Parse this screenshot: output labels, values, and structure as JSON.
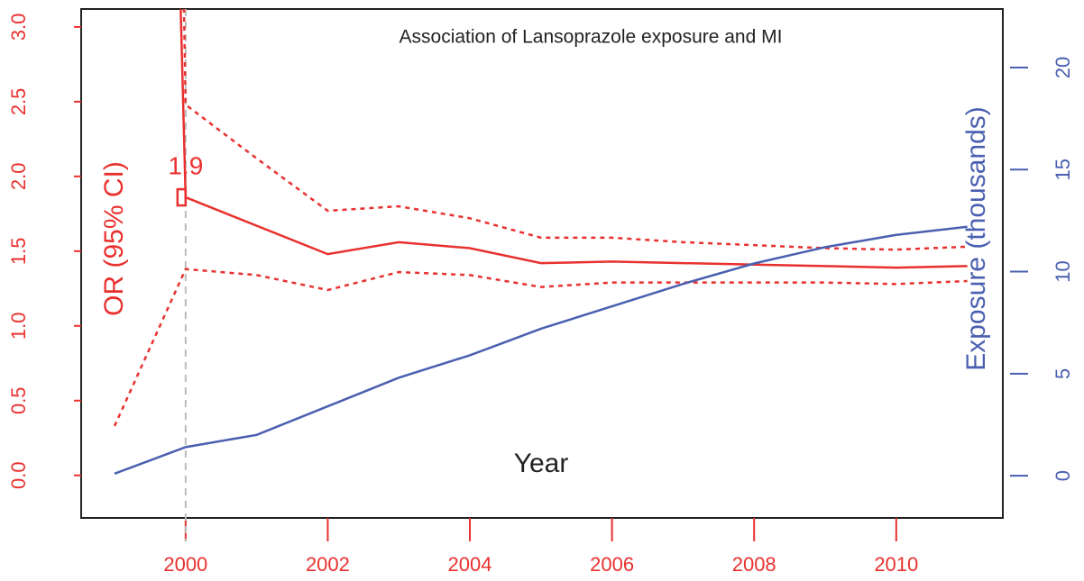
{
  "chart_data": {
    "type": "line",
    "title": "Association of Lansoprazole exposure and MI",
    "xlabel": "Year",
    "ylabel": "OR (95% CI)",
    "y2label": "Exposure (thousands)",
    "x": [
      1999,
      2000,
      2001,
      2002,
      2003,
      2004,
      2005,
      2006,
      2007,
      2008,
      2009,
      2010,
      2011
    ],
    "series": [
      {
        "color": "#e8312f",
        "dash": "solid",
        "values": [
          20,
          1.86,
          1.67,
          1.48,
          1.56,
          1.52,
          1.42,
          1.43,
          1.42,
          1.41,
          1.4,
          1.39,
          1.4
        ]
      },
      {
        "color": "#e8312f",
        "dash": "dotted",
        "values": [
          30,
          2.48,
          2.12,
          1.77,
          1.8,
          1.72,
          1.59,
          1.59,
          1.56,
          1.54,
          1.52,
          1.51,
          1.53
        ]
      },
      {
        "color": "#e8312f",
        "dash": "dotted",
        "values": [
          0.33,
          1.38,
          1.34,
          1.24,
          1.36,
          1.34,
          1.26,
          1.29,
          1.29,
          1.29,
          1.29,
          1.28,
          1.3
        ]
      },
      {
        "color": "#4a5fb0",
        "dash": "solid",
        "axis": "y2",
        "values": [
          0.1,
          1.4,
          2.0,
          3.4,
          4.8,
          5.9,
          7.2,
          8.3,
          9.4,
          10.4,
          11.2,
          11.8,
          12.2
        ]
      }
    ],
    "annotation": {
      "text": "1.9",
      "x": 2000
    },
    "xlim": [
      1998.53,
      2011.5
    ],
    "xticks": [
      2000,
      2002,
      2004,
      2006,
      2008,
      2010
    ],
    "ylim": [
      -0.285,
      3.12
    ],
    "yticks": [
      {
        "value": 0,
        "label": "0.0"
      },
      0.5,
      {
        "value": 1,
        "label": "1.0"
      },
      1.5,
      {
        "value": 2,
        "label": "2.0"
      },
      2.5,
      {
        "value": 3,
        "label": "3.0"
      }
    ],
    "y2lim": [
      -2.07,
      22.87
    ],
    "y2ticks": [
      0,
      5,
      10,
      15,
      20
    ],
    "ycolor": "#e8312f",
    "y2color": "#4a5fb0"
  }
}
